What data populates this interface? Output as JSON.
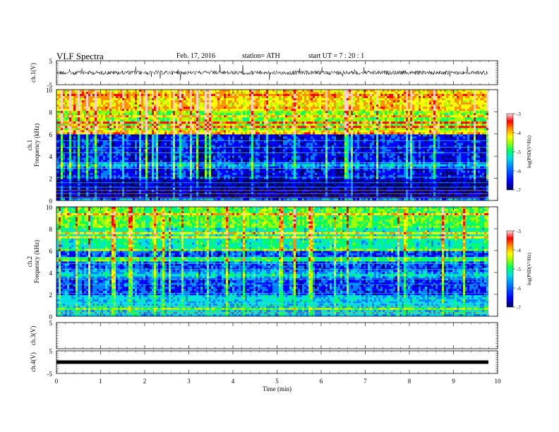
{
  "header": {
    "title": "VLF  Spectra",
    "date": "Feb. 17, 2016",
    "station": "station= ATH",
    "start": "start  UT  =   7  : 20 : 1"
  },
  "colors": {
    "spectrogram_scale": [
      "#000066",
      "#0000ff",
      "#0080ff",
      "#00e0e0",
      "#00ff60",
      "#a0ff00",
      "#ffff00",
      "#ff9000",
      "#ff0000",
      "#ffd0d0"
    ]
  },
  "chart_data": [
    {
      "type": "line",
      "name": "ch1-waveform",
      "ylabel": "ch.1(V)",
      "ylim": [
        -5,
        5
      ],
      "yticks": [
        "5",
        "-5"
      ],
      "xlim": [
        0,
        10
      ],
      "description_values": {
        "baseline_V": 0,
        "typical_amplitude_V": 0.6
      }
    },
    {
      "type": "heatmap",
      "name": "ch1-spectrogram",
      "ylabel_lines": [
        "ch.1",
        "Frequency  (kHz)"
      ],
      "ylim": [
        0,
        10
      ],
      "yticks": [
        "0",
        "2",
        "4",
        "6",
        "8",
        "10"
      ],
      "xlim": [
        0,
        9.8
      ],
      "colorbar": {
        "label": "log(PSD(V²/Hz)",
        "range": [
          -7,
          -3
        ],
        "ticks": [
          "-3",
          "-4",
          "-5",
          "-6",
          "-7"
        ]
      },
      "bands_kHz_logPSD": [
        [
          0,
          2,
          -6.8
        ],
        [
          2,
          6,
          -6.3
        ],
        [
          6,
          8,
          -4.8
        ],
        [
          8,
          10,
          -4.3
        ]
      ]
    },
    {
      "type": "heatmap",
      "name": "ch2-spectrogram",
      "ylabel_lines": [
        "ch.2",
        "Frequency  (kHz)"
      ],
      "ylim": [
        0,
        10
      ],
      "yticks": [
        "0",
        "2",
        "4",
        "6",
        "8",
        "10"
      ],
      "xlim": [
        0,
        9.8
      ],
      "colorbar": {
        "label": "log(PSD(V²/Hz)",
        "range": [
          -7,
          -3
        ],
        "ticks": [
          "-3",
          "-4",
          "-5",
          "-6",
          "-7"
        ]
      },
      "bands_kHz_logPSD": [
        [
          0,
          2,
          -5.9
        ],
        [
          2,
          6,
          -6.2
        ],
        [
          6,
          8,
          -5.4
        ],
        [
          8,
          10,
          -5.0
        ]
      ]
    },
    {
      "type": "line",
      "name": "ch3-waveform",
      "ylabel": "ch.3(V)",
      "ylim": [
        -5,
        5
      ],
      "yticks": [
        "5"
      ],
      "xlim": [
        0,
        10
      ]
    },
    {
      "type": "line",
      "name": "ch4-waveform",
      "ylabel": "ch.4(V)",
      "ylim": [
        -5,
        5
      ],
      "yticks": [
        "5",
        "-5"
      ],
      "xlim": [
        0,
        10
      ],
      "description_values": {
        "constant_V": 0
      }
    }
  ],
  "xaxis": {
    "label": "Time  (min)",
    "ticks": [
      "0",
      "1",
      "2",
      "3",
      "4",
      "5",
      "6",
      "7",
      "8",
      "9",
      "10"
    ]
  }
}
